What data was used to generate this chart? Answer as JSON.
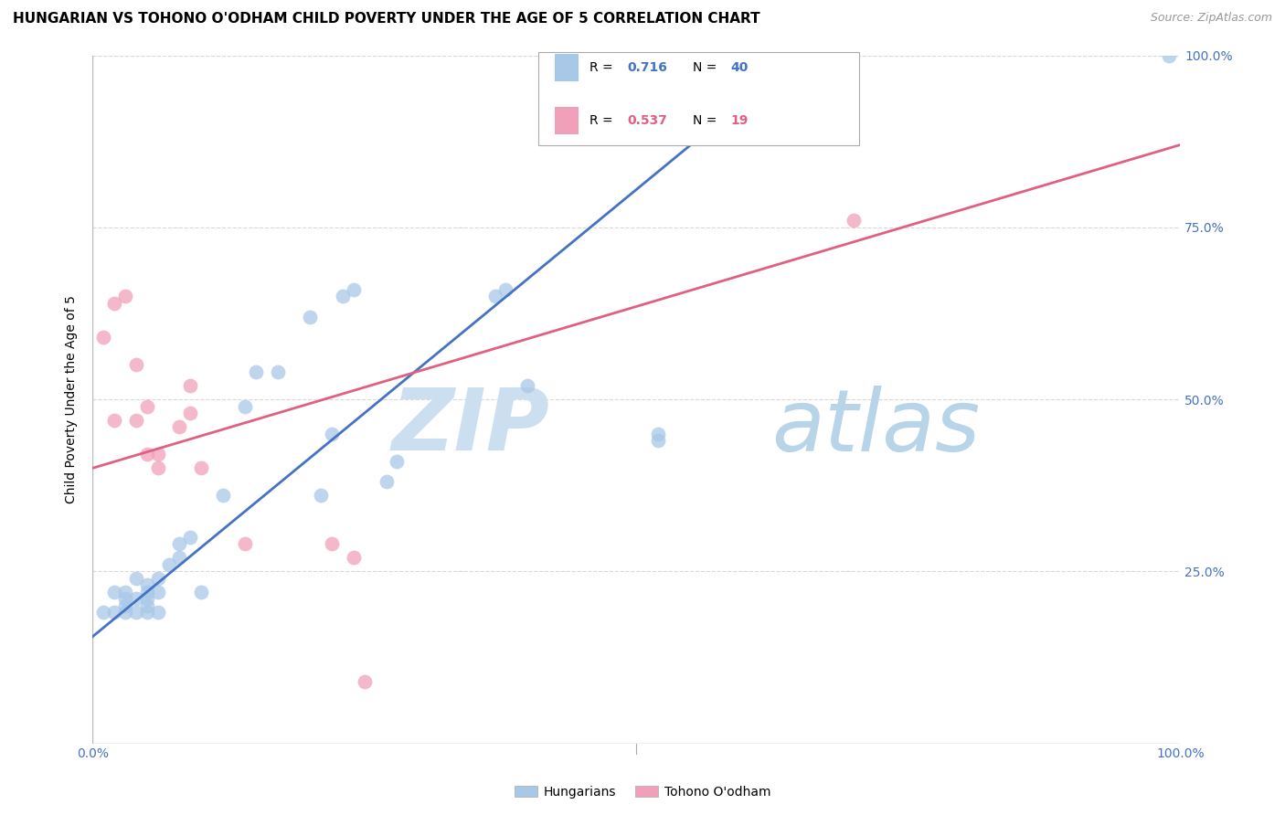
{
  "title": "HUNGARIAN VS TOHONO O'ODHAM CHILD POVERTY UNDER THE AGE OF 5 CORRELATION CHART",
  "source": "Source: ZipAtlas.com",
  "ylabel": "Child Poverty Under the Age of 5",
  "xlim": [
    0.0,
    1.0
  ],
  "ylim": [
    0.0,
    1.0
  ],
  "background_color": "#ffffff",
  "grid_color": "#d8d8d8",
  "blue_color": "#a8c8e8",
  "pink_color": "#f0a0b8",
  "blue_line_color": "#4472c4",
  "pink_line_color": "#e06080",
  "blue_R": "0.716",
  "blue_N": "40",
  "pink_R": "0.537",
  "pink_N": "19",
  "blue_scatter_x": [
    0.01,
    0.02,
    0.02,
    0.03,
    0.03,
    0.03,
    0.03,
    0.04,
    0.04,
    0.04,
    0.05,
    0.05,
    0.05,
    0.05,
    0.05,
    0.06,
    0.06,
    0.06,
    0.07,
    0.08,
    0.08,
    0.09,
    0.1,
    0.12,
    0.14,
    0.15,
    0.17,
    0.2,
    0.21,
    0.22,
    0.23,
    0.24,
    0.27,
    0.28,
    0.37,
    0.38,
    0.4,
    0.52,
    0.52,
    0.99
  ],
  "blue_scatter_y": [
    0.19,
    0.19,
    0.22,
    0.19,
    0.2,
    0.21,
    0.22,
    0.19,
    0.21,
    0.24,
    0.19,
    0.2,
    0.21,
    0.22,
    0.23,
    0.19,
    0.22,
    0.24,
    0.26,
    0.29,
    0.27,
    0.3,
    0.22,
    0.36,
    0.49,
    0.54,
    0.54,
    0.62,
    0.36,
    0.45,
    0.65,
    0.66,
    0.38,
    0.41,
    0.65,
    0.66,
    0.52,
    0.45,
    0.44,
    1.0
  ],
  "pink_scatter_x": [
    0.01,
    0.02,
    0.02,
    0.03,
    0.04,
    0.04,
    0.05,
    0.05,
    0.06,
    0.06,
    0.08,
    0.09,
    0.09,
    0.1,
    0.14,
    0.22,
    0.24,
    0.25,
    0.7
  ],
  "pink_scatter_y": [
    0.59,
    0.64,
    0.47,
    0.65,
    0.55,
    0.47,
    0.42,
    0.49,
    0.4,
    0.42,
    0.46,
    0.52,
    0.48,
    0.4,
    0.29,
    0.29,
    0.27,
    0.09,
    0.76
  ],
  "blue_line_intercept": 0.155,
  "blue_line_slope": 1.3,
  "pink_line_intercept": 0.4,
  "pink_line_slope": 0.47,
  "legend_label_blue": "Hungarians",
  "legend_label_pink": "Tohono O'odham",
  "ytick_color": "#4472c4",
  "xtick_color": "#4472c4"
}
